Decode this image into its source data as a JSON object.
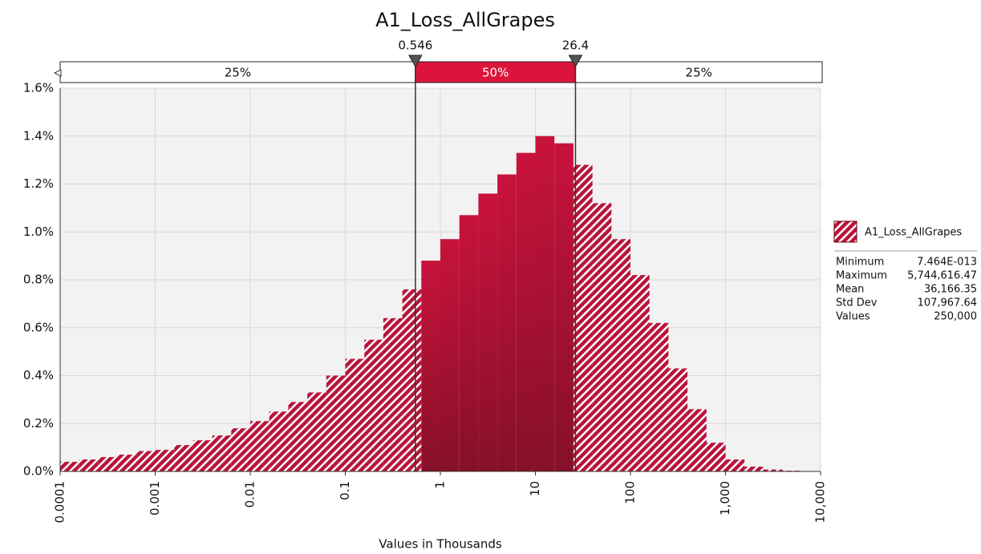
{
  "chart_data": {
    "type": "histogram",
    "title": "A1_Loss_AllGrapes",
    "xlabel": "Values in Thousands",
    "log_x": true,
    "grid": true,
    "bins": [
      0.0001,
      0.0001585,
      0.0002512,
      0.0003981,
      0.000631,
      0.001,
      0.001585,
      0.002512,
      0.003981,
      0.00631,
      0.01,
      0.01585,
      0.02512,
      0.03981,
      0.0631,
      0.1,
      0.1585,
      0.2512,
      0.3981,
      0.631,
      1,
      1.585,
      2.512,
      3.981,
      6.31,
      10,
      15.85,
      25.12,
      39.81,
      63.1,
      100,
      158.5,
      251.2,
      398.1,
      631,
      1000,
      1585,
      2512,
      3981,
      6310,
      10000
    ],
    "values": [
      0.04,
      0.05,
      0.06,
      0.07,
      0.085,
      0.09,
      0.11,
      0.13,
      0.15,
      0.18,
      0.21,
      0.25,
      0.29,
      0.33,
      0.4,
      0.47,
      0.55,
      0.64,
      0.76,
      0.88,
      0.97,
      1.07,
      1.16,
      1.24,
      1.33,
      1.4,
      1.37,
      1.28,
      1.12,
      0.97,
      0.82,
      0.62,
      0.43,
      0.26,
      0.12,
      0.05,
      0.02,
      0.008,
      0.003,
      0.001
    ],
    "color": "#b8143c",
    "highlight_color": "#a8102f",
    "xlim": [
      0.0001,
      10000
    ],
    "xticks": [
      0.0001,
      0.001,
      0.01,
      0.1,
      1,
      10,
      100,
      {
        "value": 1000,
        "label": "1,000"
      },
      {
        "value": 10000,
        "label": "10,000"
      }
    ],
    "ylim": [
      0,
      1.6
    ],
    "yticks": [
      {
        "value": 0,
        "label": "0.0%"
      },
      {
        "value": 0.2,
        "label": "0.2%"
      },
      {
        "value": 0.4,
        "label": "0.4%"
      },
      {
        "value": 0.6,
        "label": "0.6%"
      },
      {
        "value": 0.8,
        "label": "0.8%"
      },
      {
        "value": 1,
        "label": "1.0%"
      },
      {
        "value": 1.2,
        "label": "1.2%"
      },
      {
        "value": 1.4,
        "label": "1.4%"
      },
      {
        "value": 1.6,
        "label": "1.6%"
      }
    ],
    "delimiters": [
      0.546,
      26.4
    ],
    "regions": [
      {
        "value": 25,
        "label": "25%"
      },
      {
        "value": 50,
        "label": "50%"
      },
      {
        "value": 25,
        "label": "25%"
      }
    ],
    "legend": {
      "name": "A1_Loss_AllGrapes",
      "stats": [
        [
          "Minimum",
          "7.464E-013"
        ],
        [
          "Maximum",
          "5,744,616.47"
        ],
        [
          "Mean",
          "36,166.35"
        ],
        [
          "Std Dev",
          "107,967.64"
        ],
        [
          "Values",
          "250,000"
        ]
      ]
    }
  }
}
